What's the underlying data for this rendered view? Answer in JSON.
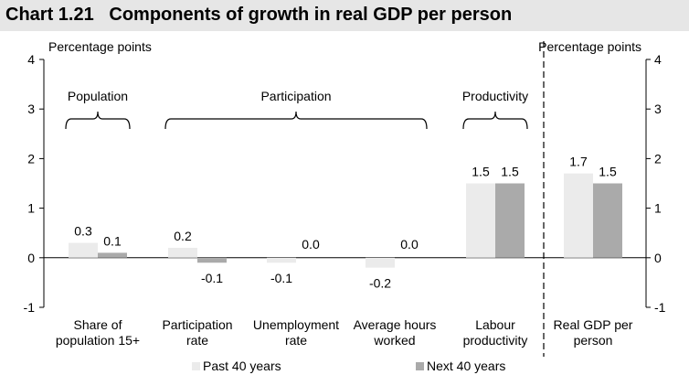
{
  "title": "Chart 1.21   Components of growth in real GDP per person",
  "chart_data": {
    "type": "bar",
    "y_unit_label_left": "Percentage points",
    "y_unit_label_right": "Percentage points",
    "ylim": [
      -1,
      4
    ],
    "yticks": [
      "-1",
      "0",
      "1",
      "2",
      "3",
      "4"
    ],
    "grid": false,
    "categories": [
      [
        "Share of",
        "population 15+"
      ],
      [
        "Participation",
        "rate"
      ],
      [
        "Unemployment",
        "rate"
      ],
      [
        "Average hours",
        "worked"
      ],
      [
        "Labour",
        "productivity"
      ],
      [
        "Real GDP per",
        "person"
      ]
    ],
    "series": [
      {
        "name": "Past 40 years",
        "color": "#ebebeb",
        "values": [
          0.3,
          0.2,
          -0.1,
          -0.2,
          1.5,
          1.7
        ]
      },
      {
        "name": "Next 40 years",
        "color": "#aaaaaa",
        "values": [
          0.1,
          -0.1,
          0.0,
          0.0,
          1.5,
          1.5
        ]
      }
    ],
    "data_labels": [
      [
        "0.3",
        "0.2",
        "-0.1",
        "-0.2",
        "1.5",
        "1.7"
      ],
      [
        "0.1",
        "-0.1",
        "0.0",
        "0.0",
        "1.5",
        "1.5"
      ]
    ],
    "groups": [
      {
        "label": "Population",
        "from": 0,
        "to": 0
      },
      {
        "label": "Participation",
        "from": 1,
        "to": 3
      },
      {
        "label": "Productivity",
        "from": 4,
        "to": 4
      }
    ],
    "legend_position": "bottom"
  }
}
